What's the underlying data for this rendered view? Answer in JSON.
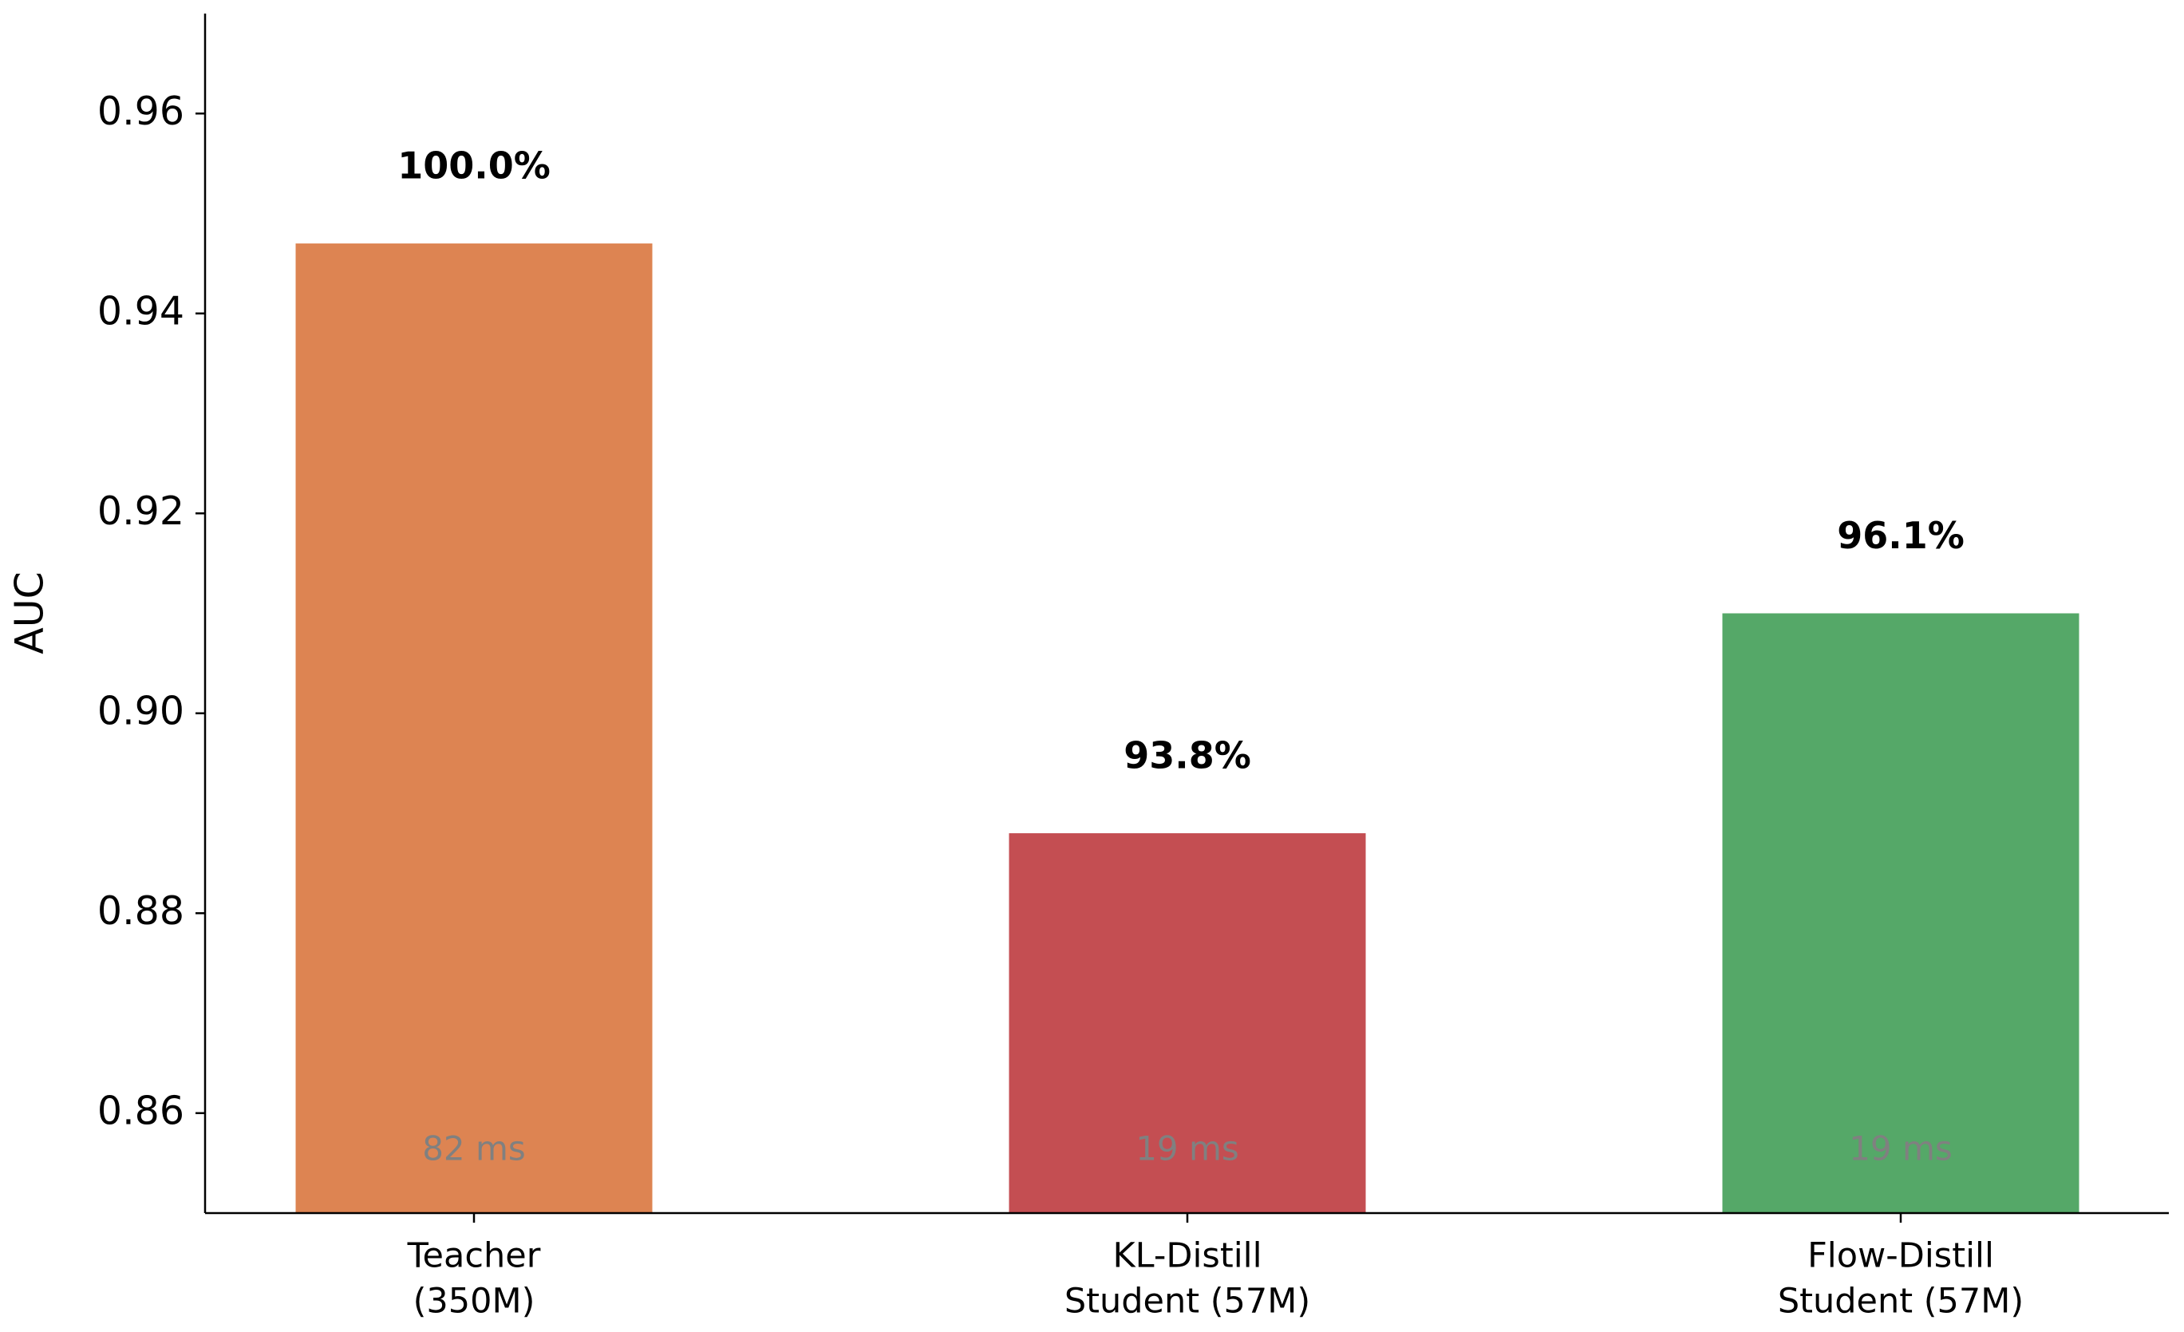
{
  "chart_data": {
    "type": "bar",
    "y_label": "AUC",
    "categories": [
      [
        "Teacher",
        "(350M)"
      ],
      [
        "KL-Distill",
        "Student (57M)"
      ],
      [
        "Flow-Distill",
        "Student (57M)"
      ]
    ],
    "values": [
      0.947,
      0.888,
      0.91
    ],
    "colors": [
      "#dd8452",
      "#c44e52",
      "#55a868"
    ],
    "relative_labels": [
      "100.0%",
      "93.8%",
      "96.1%"
    ],
    "latency_labels": [
      "82 ms",
      "19 ms",
      "19 ms"
    ],
    "ylim": [
      0.85,
      0.97
    ],
    "yticks": [
      0.86,
      0.88,
      {
        "value": 0.9,
        "label": "0.90"
      },
      0.92,
      0.94,
      0.96
    ],
    "grid": false
  }
}
